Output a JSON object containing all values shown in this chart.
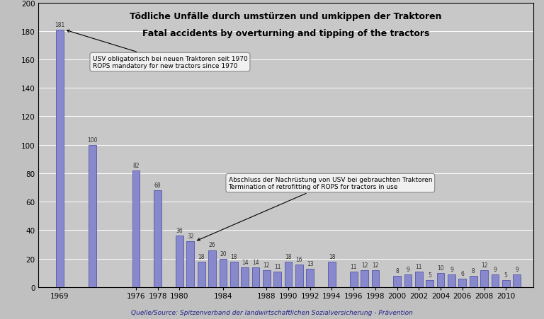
{
  "title_line1": "Tödliche Unfälle durch umstürzen und umkippen der Traktoren",
  "title_line2": "Fatal accidents by overturning and tipping of the tractors",
  "source": "Quelle/Source: Spitzenverband der landwirtschaftlichen Sozialversicherung - Prävention",
  "all_data": [
    [
      1969,
      181
    ],
    [
      1972,
      100
    ],
    [
      1976,
      82
    ],
    [
      1978,
      68
    ],
    [
      1980,
      36
    ],
    [
      1981,
      32
    ],
    [
      1982,
      18
    ],
    [
      1983,
      26
    ],
    [
      1984,
      20
    ],
    [
      1985,
      18
    ],
    [
      1986,
      14
    ],
    [
      1987,
      14
    ],
    [
      1988,
      12
    ],
    [
      1989,
      11
    ],
    [
      1990,
      18
    ],
    [
      1991,
      16
    ],
    [
      1992,
      13
    ],
    [
      1994,
      18
    ],
    [
      1996,
      11
    ],
    [
      1997,
      12
    ],
    [
      1998,
      12
    ],
    [
      2000,
      8
    ],
    [
      2001,
      9
    ],
    [
      2002,
      11
    ],
    [
      2003,
      5
    ],
    [
      2004,
      10
    ],
    [
      2005,
      9
    ],
    [
      2006,
      6
    ],
    [
      2007,
      8
    ],
    [
      2008,
      12
    ],
    [
      2009,
      9
    ],
    [
      2010,
      5
    ],
    [
      2011,
      9
    ]
  ],
  "bar_color": "#8888cc",
  "bar_edge_color": "#5555aa",
  "fig_bg_color": "#c0c0c0",
  "plot_bg_color": "#c8c8c8",
  "ylim": [
    0,
    200
  ],
  "yticks": [
    0,
    20,
    40,
    60,
    80,
    100,
    120,
    140,
    160,
    180,
    200
  ],
  "shown_xticks_years": [
    1969,
    1976,
    1978,
    1980,
    1984,
    1988,
    1990,
    1992,
    1994,
    1996,
    1998,
    2000,
    2002,
    2004,
    2006,
    2008,
    2010
  ],
  "annotation1_text": "USV obligatorisch bei neuen Traktoren seit 1970\nROPS mandatory for new tractors since 1970",
  "annotation2_text": "Abschluss der Nachrüstung von USV bei gebrauchten Traktoren\nTermination of retrofitting of ROPS for tractors in use"
}
